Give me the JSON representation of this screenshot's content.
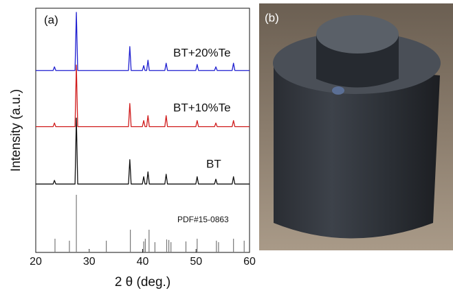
{
  "chart_data": {
    "type": "line",
    "panel_label": "(a)",
    "xlabel": "2 θ (deg.)",
    "ylabel": "Intensity (a.u.)",
    "xlim": [
      20,
      60
    ],
    "xticks": [
      20,
      30,
      40,
      50,
      60
    ],
    "ylim": [
      0,
      100
    ],
    "x": [
      20,
      23.25,
      23.5,
      23.75,
      27.35,
      27.6,
      27.85,
      37.35,
      37.6,
      37.85,
      39.95,
      40.2,
      40.45,
      40.75,
      41.0,
      41.25,
      44.15,
      44.4,
      44.65,
      49.95,
      50.2,
      50.45,
      53.45,
      53.7,
      53.95,
      56.75,
      57.0,
      57.25,
      60
    ],
    "series": [
      {
        "name": "BT+20%Te",
        "color": "#1f1fd0",
        "values": [
          74.5,
          74.5,
          76,
          74.5,
          74.5,
          98.3,
          74.5,
          74.5,
          84.3,
          74.5,
          74.5,
          76.5,
          74.5,
          74.5,
          78.7,
          74.5,
          74.5,
          77.5,
          74.5,
          74.5,
          77,
          74.5,
          74.5,
          76,
          74.5,
          74.5,
          77.5,
          74.5,
          74.5
        ]
      },
      {
        "name": "BT+10%Te",
        "color": "#d01c1c",
        "values": [
          51.5,
          51.5,
          53,
          51.5,
          51.5,
          76.7,
          51.5,
          51.5,
          61,
          51.5,
          51.5,
          54,
          51.5,
          51.5,
          56,
          51.5,
          51.5,
          56,
          51.5,
          51.5,
          54,
          51.5,
          51.5,
          53,
          51.5,
          51.5,
          54,
          51.5,
          51.5
        ]
      },
      {
        "name": "BT",
        "color": "#111111",
        "values": [
          28,
          28,
          29.5,
          28,
          28,
          55,
          28,
          28,
          38,
          28,
          28,
          31,
          28,
          28,
          33,
          28,
          28,
          32,
          28,
          28,
          31,
          28,
          28,
          30,
          28,
          28,
          31,
          28,
          28
        ]
      }
    ],
    "reference": {
      "name": "PDF#15-0863",
      "color": "#777777",
      "x": [
        23.6,
        26.3,
        27.6,
        30.0,
        33.2,
        37.7,
        40.2,
        40.5,
        41.2,
        42.3,
        44.5,
        44.9,
        45.3,
        48.1,
        50.2,
        53.8,
        54.2,
        57.0,
        59.0
      ],
      "values": [
        5.6,
        4.8,
        23.6,
        1.1,
        4.8,
        9.3,
        4.5,
        5.6,
        9.3,
        4.2,
        5.3,
        5.1,
        4.2,
        4.5,
        5.6,
        4.8,
        4.2,
        5.6,
        4.8
      ]
    }
  },
  "photo": {
    "panel_label": "(b)"
  }
}
